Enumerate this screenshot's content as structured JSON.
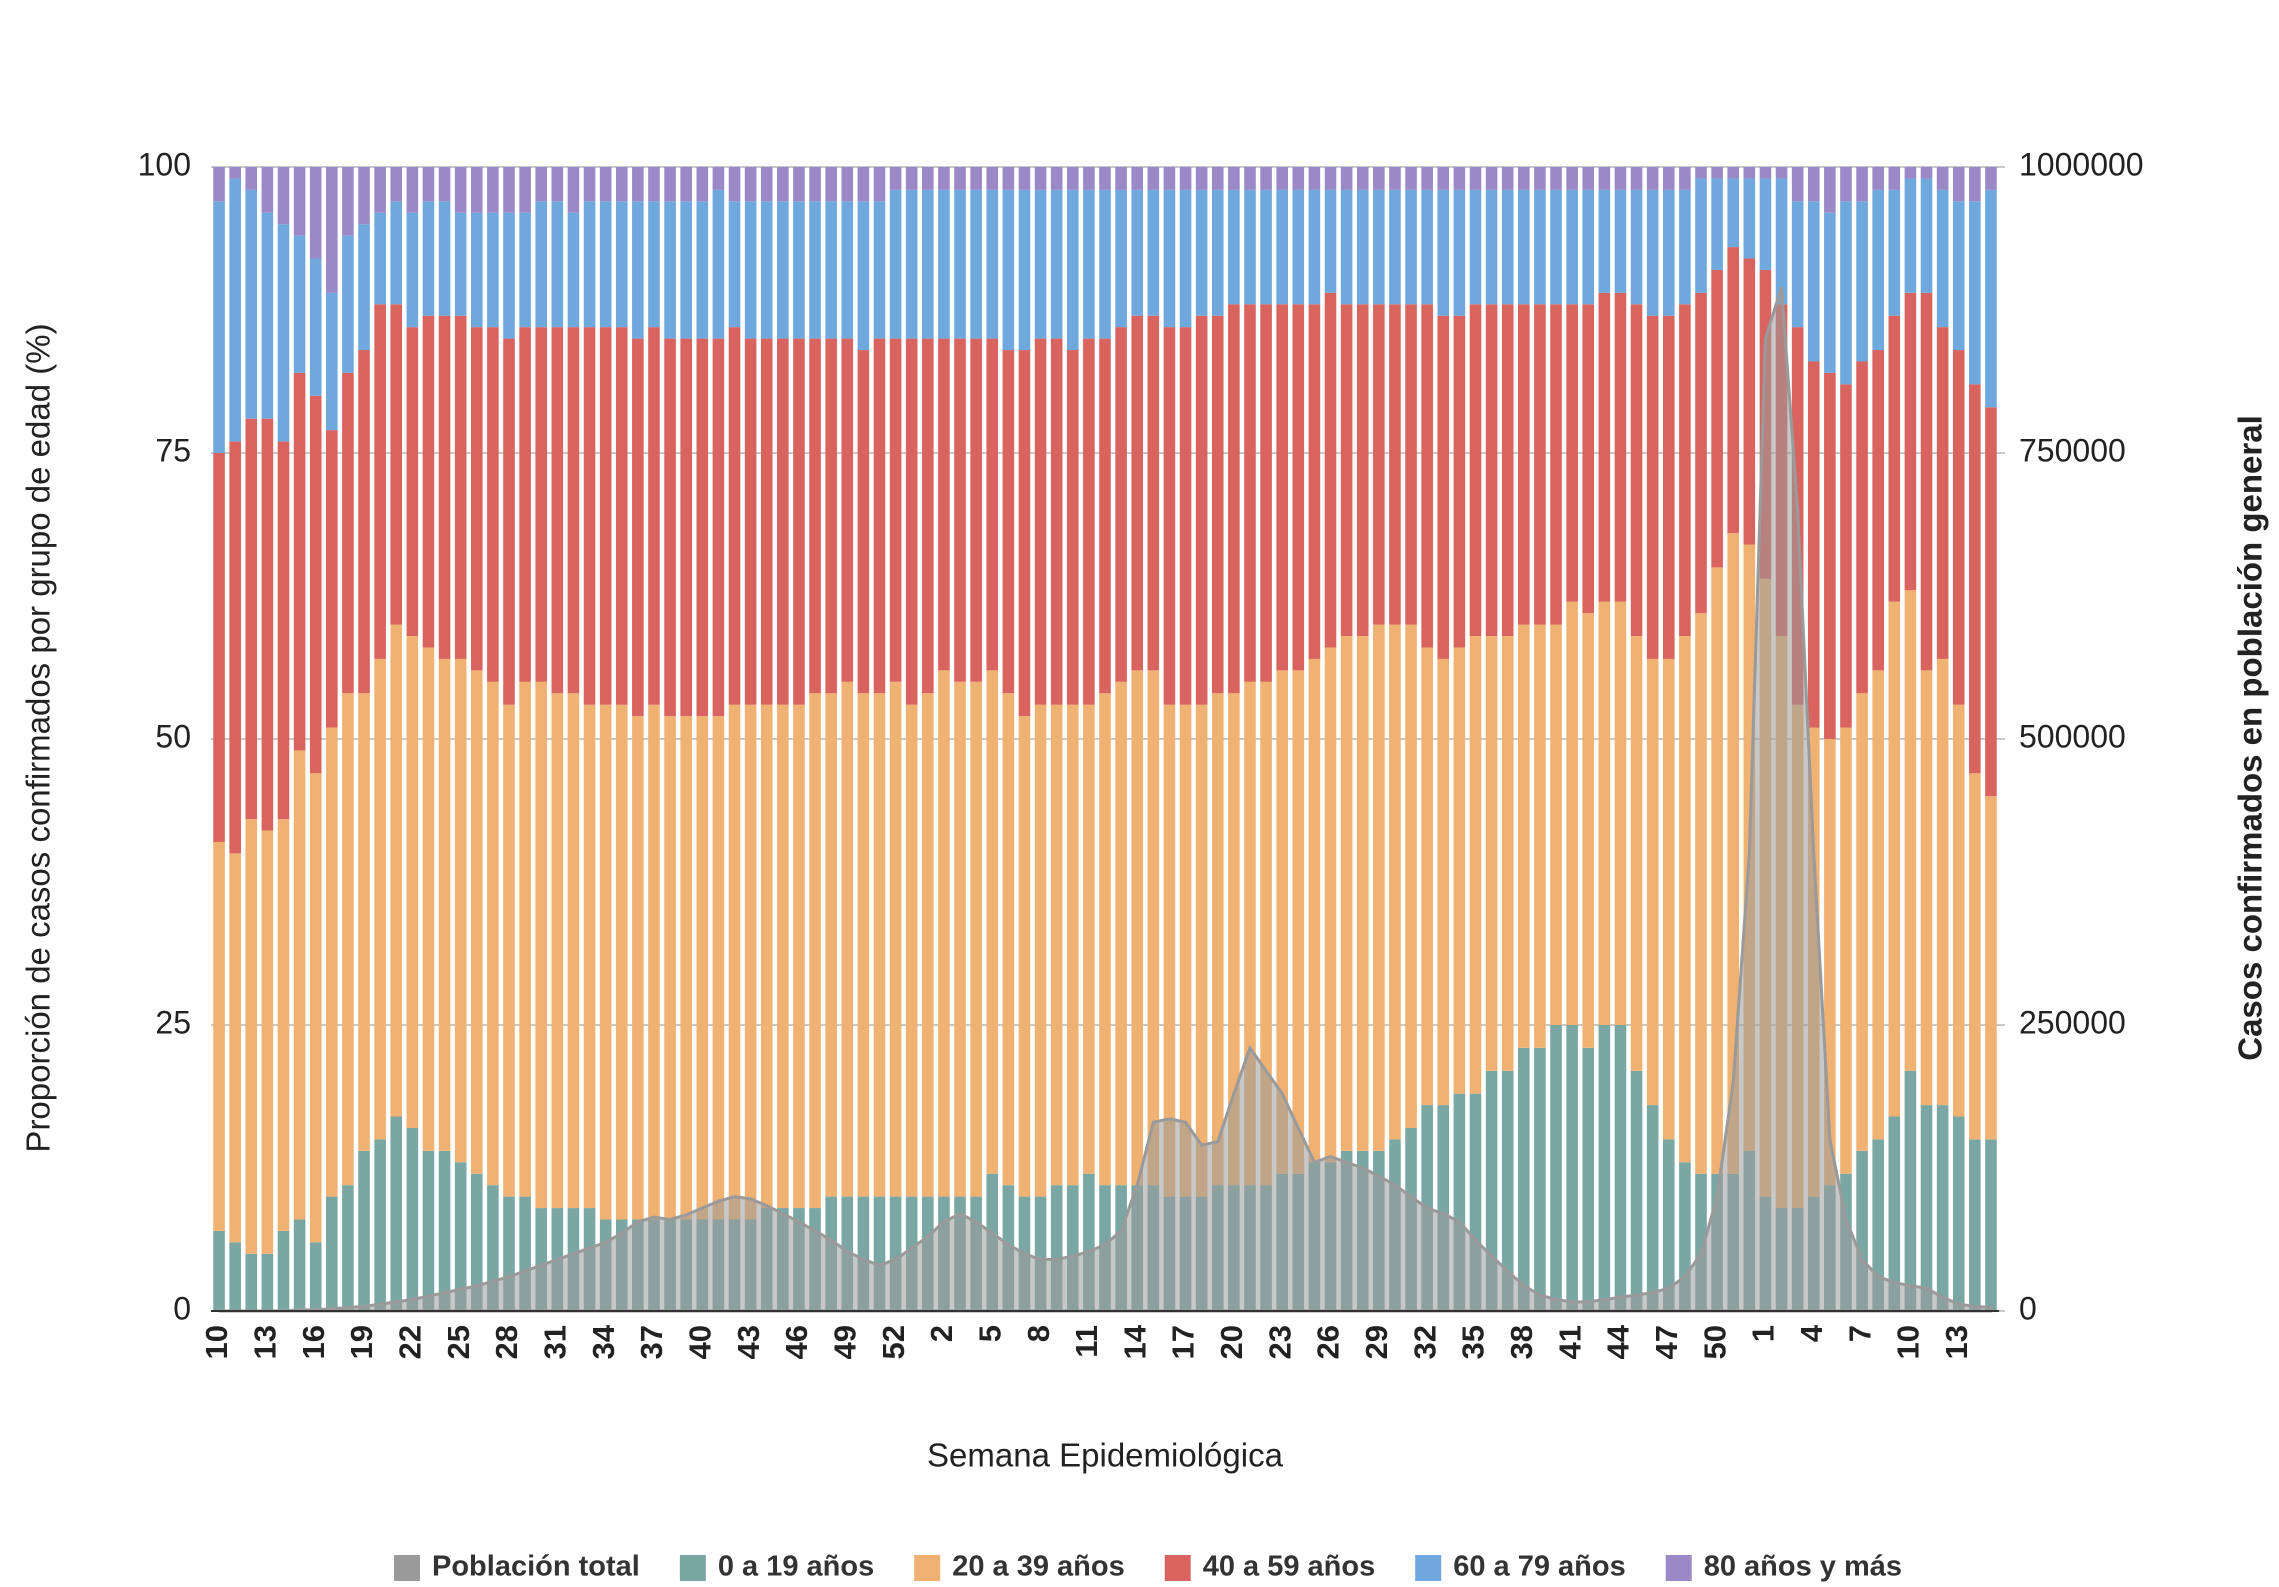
{
  "chart_data": {
    "type": "bar",
    "stacked": true,
    "grid": true,
    "legend": "bottom",
    "xlabel": "Semana Epidemiológica",
    "ylabel": "Proporción de casos confirmados por grupo de edad (%)",
    "y2label": "Casos confirmados en población general",
    "ylim": [
      0,
      100
    ],
    "yticks": [
      0,
      25,
      50,
      75,
      100
    ],
    "y2lim": [
      0,
      1000000
    ],
    "y2ticks": [
      0,
      250000,
      500000,
      750000,
      1000000
    ],
    "categories": [
      "10",
      null,
      null,
      "13",
      null,
      null,
      "16",
      null,
      null,
      "19",
      null,
      null,
      "22",
      null,
      null,
      "25",
      null,
      null,
      "28",
      null,
      null,
      "31",
      null,
      null,
      "34",
      null,
      null,
      "37",
      null,
      null,
      "40",
      null,
      null,
      "43",
      null,
      null,
      "46",
      null,
      null,
      "49",
      null,
      null,
      "52",
      null,
      null,
      "2",
      null,
      null,
      "5",
      null,
      null,
      "8",
      null,
      null,
      "11",
      null,
      null,
      "14",
      null,
      null,
      "17",
      null,
      null,
      "20",
      null,
      null,
      "23",
      null,
      null,
      "26",
      null,
      null,
      "29",
      null,
      null,
      "32",
      null,
      null,
      "35",
      null,
      null,
      "38",
      null,
      null,
      "41",
      null,
      null,
      "44",
      null,
      null,
      "47",
      null,
      null,
      "50",
      null,
      null,
      "1",
      null,
      null,
      "4",
      null,
      null,
      "7",
      null,
      null,
      "10",
      null,
      null,
      "13",
      null,
      null
    ],
    "series": [
      {
        "name": "Población total",
        "color": "#9a9a9a",
        "type": "area",
        "axis": "y2",
        "values": [
          0,
          0,
          0,
          0,
          0,
          1000,
          1000,
          2000,
          3000,
          4000,
          6000,
          8000,
          10000,
          13000,
          16000,
          19000,
          22000,
          26000,
          30000,
          35000,
          40000,
          45000,
          50000,
          55000,
          60000,
          68000,
          78000,
          82000,
          80000,
          84000,
          90000,
          96000,
          100000,
          98000,
          92000,
          85000,
          78000,
          70000,
          62000,
          52000,
          45000,
          40000,
          45000,
          55000,
          65000,
          78000,
          85000,
          78000,
          68000,
          58000,
          50000,
          45000,
          45000,
          48000,
          52000,
          58000,
          70000,
          110000,
          165000,
          168000,
          165000,
          145000,
          148000,
          190000,
          230000,
          210000,
          190000,
          160000,
          130000,
          135000,
          130000,
          125000,
          118000,
          110000,
          100000,
          90000,
          85000,
          78000,
          62000,
          48000,
          35000,
          22000,
          14000,
          10000,
          8000,
          8000,
          10000,
          12000,
          14000,
          16000,
          20000,
          30000,
          50000,
          100000,
          200000,
          400000,
          850000,
          895000,
          700000,
          400000,
          150000,
          80000,
          45000,
          30000,
          25000,
          22000,
          20000,
          12000,
          6000,
          4000,
          3000
        ]
      },
      {
        "name": "0 a 19 años",
        "color": "#7aa7a3",
        "values": [
          7,
          6,
          5,
          5,
          7,
          8,
          6,
          10,
          11,
          14,
          15,
          17,
          16,
          14,
          14,
          13,
          12,
          11,
          10,
          10,
          9,
          9,
          9,
          9,
          8,
          8,
          8,
          8,
          8,
          8,
          8,
          8,
          8,
          8,
          9,
          9,
          9,
          9,
          10,
          10,
          10,
          10,
          10,
          10,
          10,
          10,
          10,
          10,
          12,
          11,
          10,
          10,
          11,
          11,
          12,
          11,
          11,
          11,
          11,
          10,
          10,
          10,
          11,
          11,
          11,
          11,
          12,
          12,
          13,
          13,
          14,
          14,
          14,
          15,
          16,
          18,
          18,
          19,
          19,
          21,
          21,
          23,
          23,
          25,
          25,
          23,
          25,
          25,
          21,
          18,
          15,
          13,
          12,
          12,
          12,
          14,
          10,
          9,
          9,
          10,
          11,
          12,
          14,
          15,
          17,
          21,
          18,
          18,
          17,
          15,
          15
        ]
      },
      {
        "name": "20 a 39 años",
        "color": "#f0b273",
        "values": [
          34,
          34,
          38,
          37,
          36,
          41,
          41,
          41,
          43,
          40,
          42,
          43,
          43,
          44,
          43,
          44,
          44,
          44,
          43,
          45,
          46,
          45,
          45,
          44,
          45,
          45,
          44,
          45,
          44,
          44,
          44,
          44,
          45,
          45,
          44,
          44,
          44,
          45,
          44,
          45,
          44,
          44,
          45,
          43,
          44,
          46,
          45,
          45,
          44,
          43,
          42,
          43,
          42,
          42,
          41,
          43,
          44,
          45,
          45,
          43,
          43,
          43,
          43,
          43,
          44,
          44,
          44,
          44,
          44,
          45,
          45,
          45,
          46,
          45,
          44,
          40,
          39,
          39,
          40,
          38,
          38,
          37,
          37,
          35,
          37,
          38,
          37,
          37,
          38,
          39,
          42,
          46,
          49,
          53,
          56,
          53,
          54,
          50,
          44,
          41,
          39,
          39,
          40,
          41,
          45,
          42,
          38,
          39,
          36,
          32,
          30
        ]
      },
      {
        "name": "40 a 59 años",
        "color": "#d9635f",
        "values": [
          34,
          36,
          35,
          36,
          33,
          33,
          33,
          26,
          28,
          30,
          31,
          28,
          27,
          29,
          30,
          30,
          30,
          31,
          32,
          31,
          31,
          32,
          32,
          33,
          33,
          33,
          33,
          33,
          33,
          33,
          33,
          33,
          33,
          32,
          32,
          32,
          32,
          31,
          31,
          30,
          30,
          31,
          30,
          32,
          31,
          29,
          30,
          30,
          29,
          30,
          32,
          32,
          32,
          31,
          32,
          31,
          31,
          31,
          31,
          33,
          33,
          34,
          33,
          34,
          33,
          33,
          32,
          32,
          31,
          31,
          29,
          29,
          28,
          28,
          28,
          30,
          30,
          29,
          29,
          29,
          29,
          28,
          28,
          28,
          26,
          27,
          27,
          27,
          29,
          30,
          30,
          29,
          28,
          26,
          25,
          25,
          27,
          29,
          33,
          32,
          32,
          30,
          29,
          28,
          25,
          26,
          33,
          29,
          31,
          34,
          34
        ]
      },
      {
        "name": "60 a 79 años",
        "color": "#6fa8dc",
        "values": [
          22,
          23,
          20,
          18,
          19,
          12,
          12,
          12,
          12,
          11,
          8,
          9,
          10,
          10,
          10,
          9,
          10,
          10,
          11,
          10,
          11,
          11,
          10,
          11,
          11,
          11,
          12,
          11,
          12,
          12,
          12,
          13,
          11,
          12,
          12,
          12,
          12,
          12,
          12,
          12,
          13,
          12,
          13,
          13,
          13,
          13,
          13,
          13,
          13,
          14,
          14,
          13,
          13,
          14,
          13,
          13,
          12,
          11,
          11,
          12,
          12,
          11,
          11,
          10,
          10,
          10,
          10,
          10,
          10,
          9,
          10,
          10,
          10,
          10,
          10,
          10,
          11,
          11,
          10,
          10,
          10,
          10,
          10,
          10,
          10,
          10,
          9,
          9,
          10,
          11,
          11,
          10,
          10,
          8,
          6,
          7,
          8,
          11,
          11,
          14,
          14,
          16,
          14,
          14,
          11,
          10,
          10,
          12,
          13,
          16,
          19
        ]
      },
      {
        "name": "80 años y más",
        "color": "#9b88c7",
        "values": [
          3,
          1,
          2,
          4,
          5,
          6,
          8,
          11,
          6,
          5,
          4,
          3,
          4,
          3,
          3,
          4,
          4,
          4,
          4,
          4,
          3,
          3,
          4,
          3,
          3,
          3,
          3,
          3,
          3,
          3,
          3,
          2,
          3,
          3,
          3,
          3,
          3,
          3,
          3,
          3,
          3,
          3,
          2,
          2,
          2,
          2,
          2,
          2,
          2,
          2,
          2,
          2,
          2,
          2,
          2,
          2,
          2,
          2,
          2,
          2,
          2,
          2,
          2,
          2,
          2,
          2,
          2,
          2,
          2,
          2,
          2,
          2,
          2,
          2,
          2,
          2,
          2,
          2,
          2,
          2,
          2,
          2,
          2,
          2,
          2,
          2,
          2,
          2,
          2,
          2,
          2,
          2,
          1,
          1,
          1,
          1,
          1,
          1,
          3,
          3,
          4,
          3,
          3,
          2,
          2,
          1,
          1,
          2,
          3,
          3,
          2
        ]
      }
    ]
  }
}
